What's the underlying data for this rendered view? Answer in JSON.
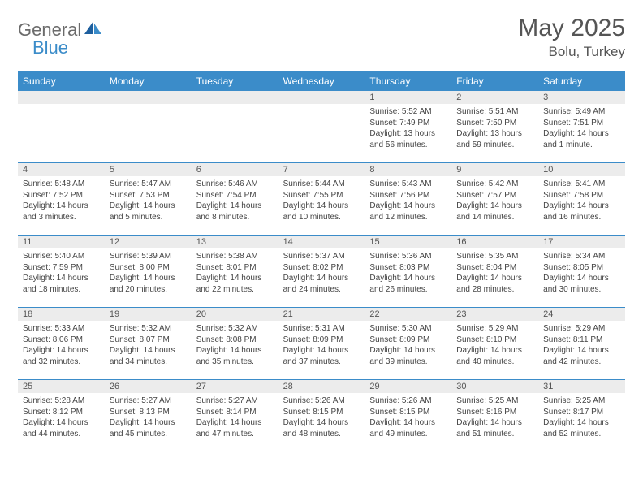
{
  "brand": {
    "name1": "General",
    "name2": "Blue"
  },
  "title": {
    "month": "May 2025",
    "location": "Bolu, Turkey"
  },
  "colors": {
    "header_bg": "#3b8cc9",
    "header_text": "#ffffff",
    "daynum_bg": "#ececec",
    "border": "#3b8cc9",
    "text": "#444444",
    "title_text": "#555555",
    "logo_gray": "#6b6b6b",
    "logo_blue": "#3b8cc9"
  },
  "dayNames": [
    "Sunday",
    "Monday",
    "Tuesday",
    "Wednesday",
    "Thursday",
    "Friday",
    "Saturday"
  ],
  "weeks": [
    [
      {
        "num": "",
        "sunrise": "",
        "sunset": "",
        "daylight": ""
      },
      {
        "num": "",
        "sunrise": "",
        "sunset": "",
        "daylight": ""
      },
      {
        "num": "",
        "sunrise": "",
        "sunset": "",
        "daylight": ""
      },
      {
        "num": "",
        "sunrise": "",
        "sunset": "",
        "daylight": ""
      },
      {
        "num": "1",
        "sunrise": "Sunrise: 5:52 AM",
        "sunset": "Sunset: 7:49 PM",
        "daylight": "Daylight: 13 hours and 56 minutes."
      },
      {
        "num": "2",
        "sunrise": "Sunrise: 5:51 AM",
        "sunset": "Sunset: 7:50 PM",
        "daylight": "Daylight: 13 hours and 59 minutes."
      },
      {
        "num": "3",
        "sunrise": "Sunrise: 5:49 AM",
        "sunset": "Sunset: 7:51 PM",
        "daylight": "Daylight: 14 hours and 1 minute."
      }
    ],
    [
      {
        "num": "4",
        "sunrise": "Sunrise: 5:48 AM",
        "sunset": "Sunset: 7:52 PM",
        "daylight": "Daylight: 14 hours and 3 minutes."
      },
      {
        "num": "5",
        "sunrise": "Sunrise: 5:47 AM",
        "sunset": "Sunset: 7:53 PM",
        "daylight": "Daylight: 14 hours and 5 minutes."
      },
      {
        "num": "6",
        "sunrise": "Sunrise: 5:46 AM",
        "sunset": "Sunset: 7:54 PM",
        "daylight": "Daylight: 14 hours and 8 minutes."
      },
      {
        "num": "7",
        "sunrise": "Sunrise: 5:44 AM",
        "sunset": "Sunset: 7:55 PM",
        "daylight": "Daylight: 14 hours and 10 minutes."
      },
      {
        "num": "8",
        "sunrise": "Sunrise: 5:43 AM",
        "sunset": "Sunset: 7:56 PM",
        "daylight": "Daylight: 14 hours and 12 minutes."
      },
      {
        "num": "9",
        "sunrise": "Sunrise: 5:42 AM",
        "sunset": "Sunset: 7:57 PM",
        "daylight": "Daylight: 14 hours and 14 minutes."
      },
      {
        "num": "10",
        "sunrise": "Sunrise: 5:41 AM",
        "sunset": "Sunset: 7:58 PM",
        "daylight": "Daylight: 14 hours and 16 minutes."
      }
    ],
    [
      {
        "num": "11",
        "sunrise": "Sunrise: 5:40 AM",
        "sunset": "Sunset: 7:59 PM",
        "daylight": "Daylight: 14 hours and 18 minutes."
      },
      {
        "num": "12",
        "sunrise": "Sunrise: 5:39 AM",
        "sunset": "Sunset: 8:00 PM",
        "daylight": "Daylight: 14 hours and 20 minutes."
      },
      {
        "num": "13",
        "sunrise": "Sunrise: 5:38 AM",
        "sunset": "Sunset: 8:01 PM",
        "daylight": "Daylight: 14 hours and 22 minutes."
      },
      {
        "num": "14",
        "sunrise": "Sunrise: 5:37 AM",
        "sunset": "Sunset: 8:02 PM",
        "daylight": "Daylight: 14 hours and 24 minutes."
      },
      {
        "num": "15",
        "sunrise": "Sunrise: 5:36 AM",
        "sunset": "Sunset: 8:03 PM",
        "daylight": "Daylight: 14 hours and 26 minutes."
      },
      {
        "num": "16",
        "sunrise": "Sunrise: 5:35 AM",
        "sunset": "Sunset: 8:04 PM",
        "daylight": "Daylight: 14 hours and 28 minutes."
      },
      {
        "num": "17",
        "sunrise": "Sunrise: 5:34 AM",
        "sunset": "Sunset: 8:05 PM",
        "daylight": "Daylight: 14 hours and 30 minutes."
      }
    ],
    [
      {
        "num": "18",
        "sunrise": "Sunrise: 5:33 AM",
        "sunset": "Sunset: 8:06 PM",
        "daylight": "Daylight: 14 hours and 32 minutes."
      },
      {
        "num": "19",
        "sunrise": "Sunrise: 5:32 AM",
        "sunset": "Sunset: 8:07 PM",
        "daylight": "Daylight: 14 hours and 34 minutes."
      },
      {
        "num": "20",
        "sunrise": "Sunrise: 5:32 AM",
        "sunset": "Sunset: 8:08 PM",
        "daylight": "Daylight: 14 hours and 35 minutes."
      },
      {
        "num": "21",
        "sunrise": "Sunrise: 5:31 AM",
        "sunset": "Sunset: 8:09 PM",
        "daylight": "Daylight: 14 hours and 37 minutes."
      },
      {
        "num": "22",
        "sunrise": "Sunrise: 5:30 AM",
        "sunset": "Sunset: 8:09 PM",
        "daylight": "Daylight: 14 hours and 39 minutes."
      },
      {
        "num": "23",
        "sunrise": "Sunrise: 5:29 AM",
        "sunset": "Sunset: 8:10 PM",
        "daylight": "Daylight: 14 hours and 40 minutes."
      },
      {
        "num": "24",
        "sunrise": "Sunrise: 5:29 AM",
        "sunset": "Sunset: 8:11 PM",
        "daylight": "Daylight: 14 hours and 42 minutes."
      }
    ],
    [
      {
        "num": "25",
        "sunrise": "Sunrise: 5:28 AM",
        "sunset": "Sunset: 8:12 PM",
        "daylight": "Daylight: 14 hours and 44 minutes."
      },
      {
        "num": "26",
        "sunrise": "Sunrise: 5:27 AM",
        "sunset": "Sunset: 8:13 PM",
        "daylight": "Daylight: 14 hours and 45 minutes."
      },
      {
        "num": "27",
        "sunrise": "Sunrise: 5:27 AM",
        "sunset": "Sunset: 8:14 PM",
        "daylight": "Daylight: 14 hours and 47 minutes."
      },
      {
        "num": "28",
        "sunrise": "Sunrise: 5:26 AM",
        "sunset": "Sunset: 8:15 PM",
        "daylight": "Daylight: 14 hours and 48 minutes."
      },
      {
        "num": "29",
        "sunrise": "Sunrise: 5:26 AM",
        "sunset": "Sunset: 8:15 PM",
        "daylight": "Daylight: 14 hours and 49 minutes."
      },
      {
        "num": "30",
        "sunrise": "Sunrise: 5:25 AM",
        "sunset": "Sunset: 8:16 PM",
        "daylight": "Daylight: 14 hours and 51 minutes."
      },
      {
        "num": "31",
        "sunrise": "Sunrise: 5:25 AM",
        "sunset": "Sunset: 8:17 PM",
        "daylight": "Daylight: 14 hours and 52 minutes."
      }
    ]
  ]
}
